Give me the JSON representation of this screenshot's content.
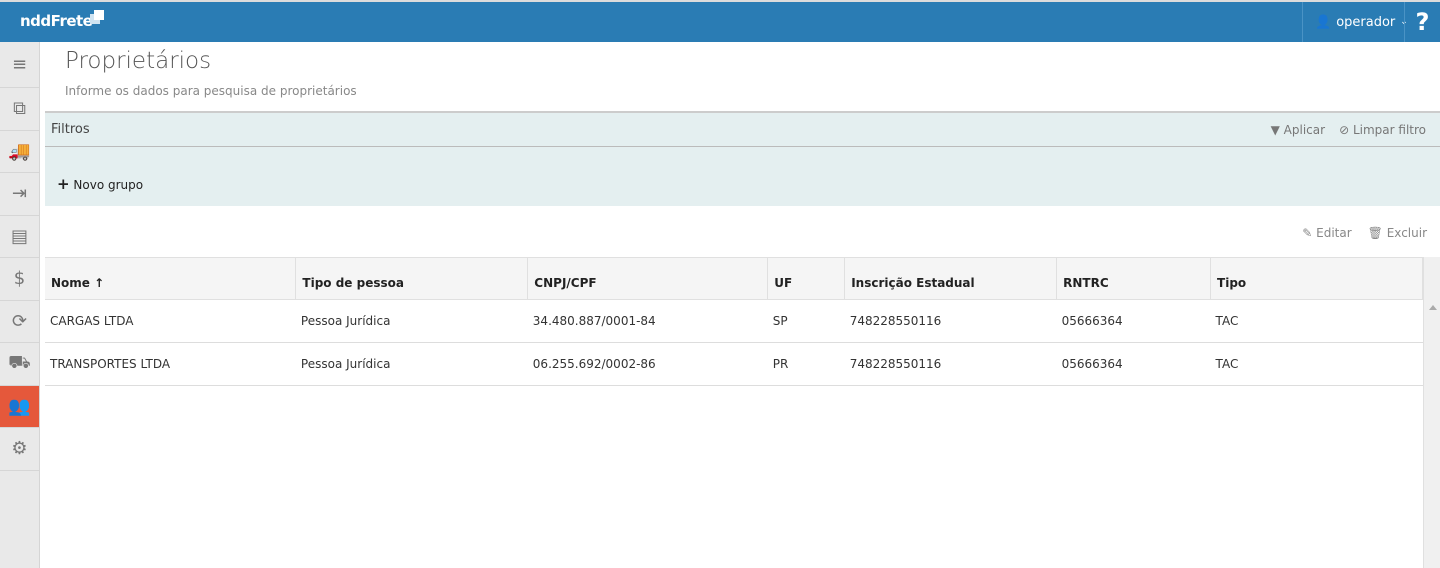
{
  "header": {
    "logo": "nddFrete",
    "user": "operador",
    "help": "?"
  },
  "sidebar": {
    "items": [
      {
        "icon": "menu-icon",
        "glyph": "≡"
      },
      {
        "icon": "documents-icon",
        "glyph": "⧉"
      },
      {
        "icon": "truck-icon",
        "glyph": "🚚"
      },
      {
        "icon": "export-icon",
        "glyph": "⇥"
      },
      {
        "icon": "document-icon",
        "glyph": "▤"
      },
      {
        "icon": "money-icon",
        "glyph": "$"
      },
      {
        "icon": "payment-cycle-icon",
        "glyph": "⟳"
      },
      {
        "icon": "vehicle-icon",
        "glyph": "⛟"
      },
      {
        "icon": "users-icon",
        "glyph": "👥",
        "active": true
      },
      {
        "icon": "gears-icon",
        "glyph": "⚙"
      }
    ]
  },
  "page": {
    "title": "Proprietários",
    "subtitle": "Informe os dados para pesquisa de proprietários"
  },
  "filters": {
    "title": "Filtros",
    "apply": "Aplicar",
    "clear": "Limpar filtro",
    "new_group": "Novo grupo"
  },
  "toolbar": {
    "edit": "Editar",
    "delete": "Excluir"
  },
  "table": {
    "columns": [
      "Nome ↑",
      "Tipo de pessoa",
      "CNPJ/CPF",
      "UF",
      "Inscrição Estadual",
      "RNTRC",
      "Tipo"
    ],
    "rows": [
      [
        "CARGAS LTDA",
        "Pessoa Jurídica",
        "34.480.887/0001-84",
        "SP",
        "748228550116",
        "05666364",
        "TAC"
      ],
      [
        "TRANSPORTES LTDA",
        "Pessoa Jurídica",
        "06.255.692/0002-86",
        "PR",
        "748228550116",
        "05666364",
        "TAC"
      ]
    ]
  },
  "colors": {
    "header": "#2a7cb4",
    "active": "#e5583b",
    "filter_bg": "#e4eff0"
  }
}
